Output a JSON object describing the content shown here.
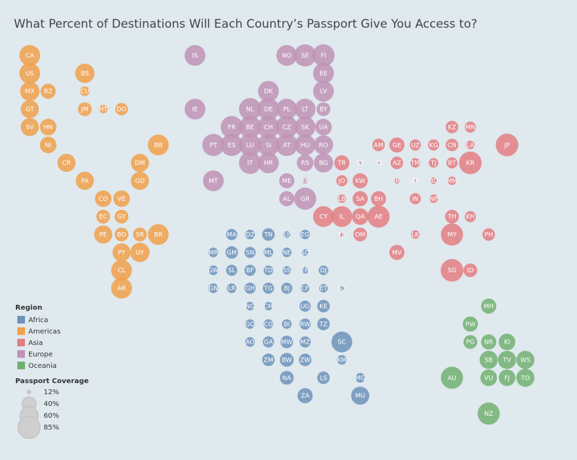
{
  "chart_data": {
    "type": "tile-bubble-map",
    "title": "What Percent of Destinations Will Each Country’s Passport Give You Access to?",
    "legend_title": "Region",
    "size_legend": {
      "title": "Passport Coverage",
      "ticks": [
        {
          "value": 12,
          "label": "12%"
        },
        {
          "value": 40,
          "label": "40%"
        },
        {
          "value": 60,
          "label": "60%"
        },
        {
          "value": 85,
          "label": "85%"
        }
      ]
    },
    "series": [
      {
        "name": "Africa",
        "color": "#6f93bb",
        "labels": [
          "MA",
          "DZ",
          "TN",
          "LY",
          "EG",
          "MR",
          "GM",
          "SN",
          "ML",
          "NE",
          "SD",
          "GW",
          "SL",
          "BF",
          "TD",
          "SS",
          "ER",
          "DJ",
          "GN",
          "LR",
          "GH",
          "TG",
          "BJ",
          "CF",
          "ET",
          "SO",
          "NG",
          "CM",
          "UG",
          "KE",
          "GQ",
          "CG",
          "BI",
          "RW",
          "TZ",
          "AO",
          "GA",
          "MW",
          "MZ",
          "SC",
          "ZM",
          "BW",
          "ZW",
          "KM",
          "NA",
          "LS",
          "MG",
          "ZA",
          "MU"
        ],
        "values": [
          29,
          24,
          34,
          17,
          24,
          24,
          34,
          29,
          24,
          24,
          17,
          24,
          29,
          29,
          24,
          21,
          17,
          24,
          24,
          24,
          29,
          29,
          29,
          21,
          21,
          13,
          21,
          21,
          29,
          34,
          24,
          24,
          24,
          29,
          34,
          24,
          29,
          34,
          29,
          76,
          34,
          39,
          34,
          24,
          39,
          34,
          24,
          45,
          60
        ]
      },
      {
        "name": "Americas",
        "color": "#f1a04a",
        "labels": [
          "CA",
          "US",
          "MX",
          "BZ",
          "GT",
          "SV",
          "HN",
          "NI",
          "BS",
          "CU",
          "JM",
          "HT",
          "DO",
          "BB",
          "CR",
          "DM",
          "PA",
          "GD",
          "CO",
          "VE",
          "EC",
          "GY",
          "PE",
          "BO",
          "SR",
          "BR",
          "PY",
          "UY",
          "CL",
          "AR"
        ],
        "values": [
          76,
          76,
          67,
          45,
          60,
          60,
          52,
          52,
          67,
          24,
          39,
          21,
          34,
          76,
          60,
          60,
          60,
          60,
          52,
          52,
          39,
          39,
          60,
          39,
          39,
          76,
          60,
          67,
          76,
          76
        ]
      },
      {
        "name": "Asia",
        "color": "#e47e82",
        "labels": [
          "TR",
          "SY",
          "IQ",
          "AZ",
          "TM",
          "TJ",
          "BT",
          "KR",
          "AM",
          "GE",
          "UZ",
          "KG",
          "CN",
          "LA",
          "JP",
          "KZ",
          "MN",
          "JO",
          "KW",
          "IR",
          "AF",
          "BD",
          "MM",
          "LB",
          "SA",
          "BH",
          "IN",
          "NP",
          "CY",
          "IL",
          "QA",
          "AE",
          "TH",
          "KH",
          "YE",
          "OM",
          "LK",
          "MY",
          "PH",
          "MV",
          "SG",
          "ID"
        ],
        "values": [
          45,
          11,
          11,
          34,
          24,
          24,
          29,
          88,
          34,
          45,
          29,
          29,
          34,
          21,
          88,
          34,
          29,
          29,
          45,
          15,
          11,
          17,
          21,
          21,
          45,
          45,
          29,
          21,
          76,
          76,
          52,
          85,
          39,
          29,
          13,
          39,
          21,
          85,
          34,
          45,
          88,
          39
        ]
      },
      {
        "name": "Europe",
        "color": "#bf93b5",
        "labels": [
          "IS",
          "NO",
          "SE",
          "FI",
          "EE",
          "DK",
          "LV",
          "IE",
          "NL",
          "DE",
          "PL",
          "LT",
          "BY",
          "FR",
          "BE",
          "CH",
          "CZ",
          "SK",
          "UA",
          "PT",
          "ES",
          "LU",
          "SI",
          "AT",
          "HU",
          "RO",
          "IT",
          "HR",
          "RS",
          "BG",
          "MT",
          "ME",
          "XK",
          "AL",
          "GR"
        ],
        "values": [
          76,
          76,
          85,
          85,
          76,
          76,
          76,
          76,
          85,
          85,
          76,
          76,
          39,
          85,
          85,
          85,
          85,
          76,
          52,
          85,
          85,
          85,
          85,
          85,
          76,
          67,
          85,
          76,
          52,
          67,
          76,
          45,
          15,
          45,
          85
        ]
      },
      {
        "name": "Oceania",
        "color": "#72b071",
        "labels": [
          "MH",
          "PW",
          "PG",
          "NR",
          "KI",
          "SB",
          "TV",
          "WS",
          "AU",
          "VU",
          "FJ",
          "TO",
          "NZ"
        ],
        "values": [
          45,
          45,
          39,
          45,
          52,
          60,
          60,
          60,
          85,
          52,
          52,
          60,
          85
        ]
      }
    ]
  }
}
